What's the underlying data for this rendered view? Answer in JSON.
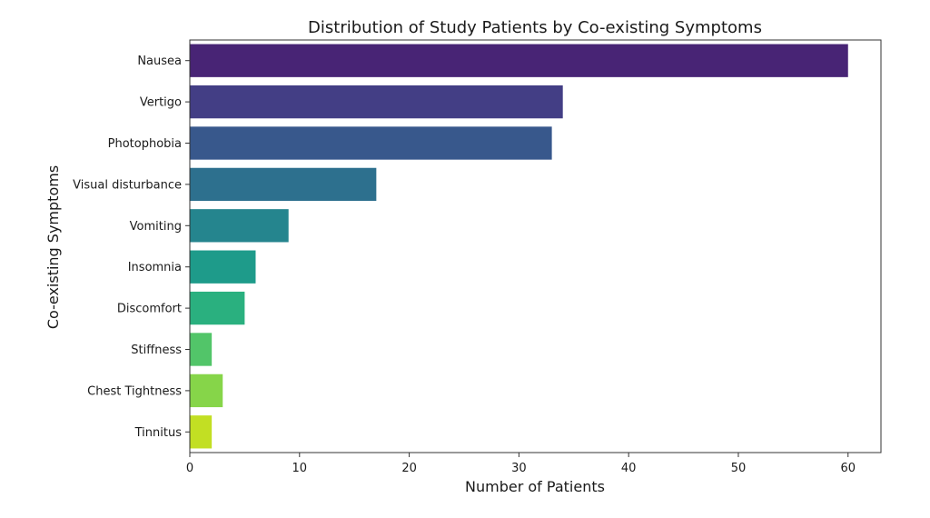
{
  "chart_data": {
    "type": "bar",
    "orientation": "horizontal",
    "title": "Distribution of Study Patients by Co-existing Symptoms",
    "xlabel": "Number of Patients",
    "ylabel": "Co-existing Symptoms",
    "categories": [
      "Nausea",
      "Vertigo",
      "Photophobia",
      "Visual disturbance",
      "Vomiting",
      "Insomnia",
      "Discomfort",
      "Stiffness",
      "Chest Tightness",
      "Tinnitus"
    ],
    "values": [
      60,
      34,
      33,
      17,
      9,
      6,
      5,
      2,
      3,
      2
    ],
    "colors": [
      "#482475",
      "#433e85",
      "#38588c",
      "#2d708e",
      "#25858e",
      "#1e9b8a",
      "#2ab07f",
      "#52c569",
      "#86d549",
      "#c2df23"
    ],
    "xlim": [
      0,
      63
    ],
    "xticks": [
      0,
      10,
      20,
      30,
      40,
      50,
      60
    ],
    "grid": false,
    "legend": "none"
  }
}
